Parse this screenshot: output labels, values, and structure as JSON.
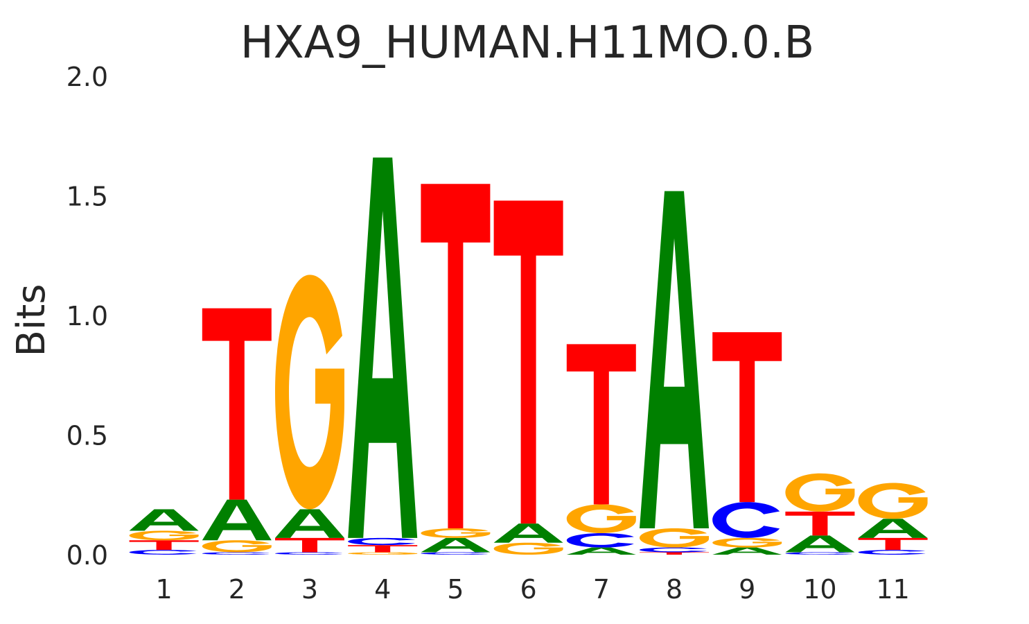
{
  "chart_data": {
    "type": "sequence-logo",
    "title": "HXA9_HUMAN.H11MO.0.B",
    "ylabel": "Bits",
    "xlabel": "",
    "ylim": [
      0,
      2
    ],
    "yticks": [
      "0.0",
      "0.5",
      "1.0",
      "1.5",
      "2.0"
    ],
    "colors": {
      "A": "#008000",
      "C": "#0000ff",
      "G": "#ffa500",
      "T": "#ff0000"
    },
    "positions": [
      {
        "label": "1",
        "stack": [
          [
            "C",
            0.02
          ],
          [
            "T",
            0.04
          ],
          [
            "G",
            0.04
          ],
          [
            "A",
            0.09
          ]
        ]
      },
      {
        "label": "2",
        "stack": [
          [
            "C",
            0.01
          ],
          [
            "G",
            0.05
          ],
          [
            "A",
            0.17
          ],
          [
            "T",
            0.8
          ]
        ]
      },
      {
        "label": "3",
        "stack": [
          [
            "C",
            0.01
          ],
          [
            "T",
            0.06
          ],
          [
            "A",
            0.12
          ],
          [
            "G",
            0.98
          ]
        ]
      },
      {
        "label": "4",
        "stack": [
          [
            "G",
            0.01
          ],
          [
            "T",
            0.03
          ],
          [
            "C",
            0.03
          ],
          [
            "A",
            1.59
          ]
        ]
      },
      {
        "label": "5",
        "stack": [
          [
            "C",
            0.01
          ],
          [
            "A",
            0.06
          ],
          [
            "G",
            0.04
          ],
          [
            "T",
            1.44
          ]
        ]
      },
      {
        "label": "6",
        "stack": [
          [
            "G",
            0.05
          ],
          [
            "A",
            0.08
          ],
          [
            "T",
            1.35
          ]
        ]
      },
      {
        "label": "7",
        "stack": [
          [
            "A",
            0.03
          ],
          [
            "C",
            0.06
          ],
          [
            "G",
            0.12
          ],
          [
            "T",
            0.67
          ]
        ]
      },
      {
        "label": "8",
        "stack": [
          [
            "T",
            0.01
          ],
          [
            "C",
            0.02
          ],
          [
            "G",
            0.08
          ],
          [
            "A",
            1.41
          ]
        ]
      },
      {
        "label": "9",
        "stack": [
          [
            "A",
            0.03
          ],
          [
            "G",
            0.04
          ],
          [
            "C",
            0.15
          ],
          [
            "T",
            0.71
          ]
        ]
      },
      {
        "label": "10",
        "stack": [
          [
            "C",
            0.01
          ],
          [
            "A",
            0.07
          ],
          [
            "T",
            0.1
          ],
          [
            "G",
            0.16
          ]
        ]
      },
      {
        "label": "11",
        "stack": [
          [
            "C",
            0.02
          ],
          [
            "T",
            0.05
          ],
          [
            "A",
            0.08
          ],
          [
            "G",
            0.15
          ]
        ]
      }
    ]
  }
}
